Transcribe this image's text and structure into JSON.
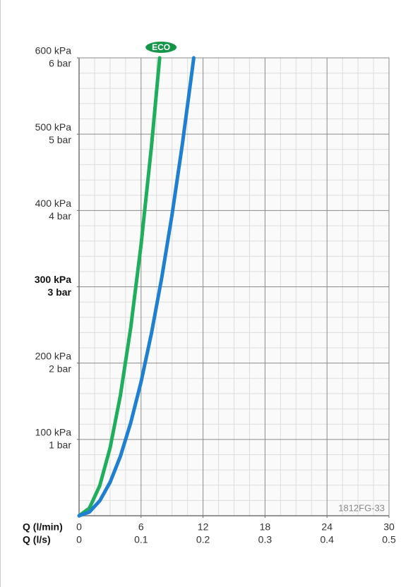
{
  "chart_data": {
    "type": "line",
    "xlabel": "Q (l/min)",
    "x2label": "Q (l/s)",
    "xlim": [
      0,
      30
    ],
    "xticks": [
      0,
      6,
      12,
      18,
      24,
      30
    ],
    "x2lim": [
      0,
      0.5
    ],
    "x2ticks": [
      0,
      0.1,
      0.2,
      0.3,
      0.4,
      0.5
    ],
    "ylim": [
      0,
      600
    ],
    "yticks": [
      {
        "value": 100,
        "label": "100 kPa"
      },
      {
        "value": 200,
        "label": "200 kPa"
      },
      {
        "value": 300,
        "label": "300 kPa"
      },
      {
        "value": 400,
        "label": "400 kPa"
      },
      {
        "value": 500,
        "label": "500 kPa"
      },
      {
        "value": 600,
        "label": "600 kPa"
      }
    ],
    "y2lim": [
      0,
      6
    ],
    "y2ticks": [
      {
        "value": 1,
        "label": "1 bar"
      },
      {
        "value": 2,
        "label": "2 bar"
      },
      {
        "value": 3,
        "label": "3 bar"
      },
      {
        "value": 4,
        "label": "4 bar"
      },
      {
        "value": 5,
        "label": "5 bar"
      },
      {
        "value": 6,
        "label": "6 bar"
      }
    ],
    "grid": true,
    "annotations": [
      "ECO",
      "1812FG-33"
    ],
    "series": [
      {
        "color": "#1fae5b",
        "x": [
          0,
          1,
          2,
          3,
          4,
          5,
          6,
          7,
          7.8
        ],
        "values": [
          0,
          9.9,
          39.4,
          88.7,
          157.7,
          246.5,
          355,
          483,
          600
        ]
      },
      {
        "color": "#1f7fd0",
        "x": [
          0,
          1,
          2,
          3,
          4,
          5,
          6,
          7,
          8,
          9,
          10,
          11,
          11.1
        ],
        "values": [
          0,
          4.9,
          19.5,
          43.8,
          77.9,
          121.8,
          175.3,
          238.6,
          311.7,
          394.5,
          487,
          589.3,
          600
        ]
      }
    ]
  }
}
